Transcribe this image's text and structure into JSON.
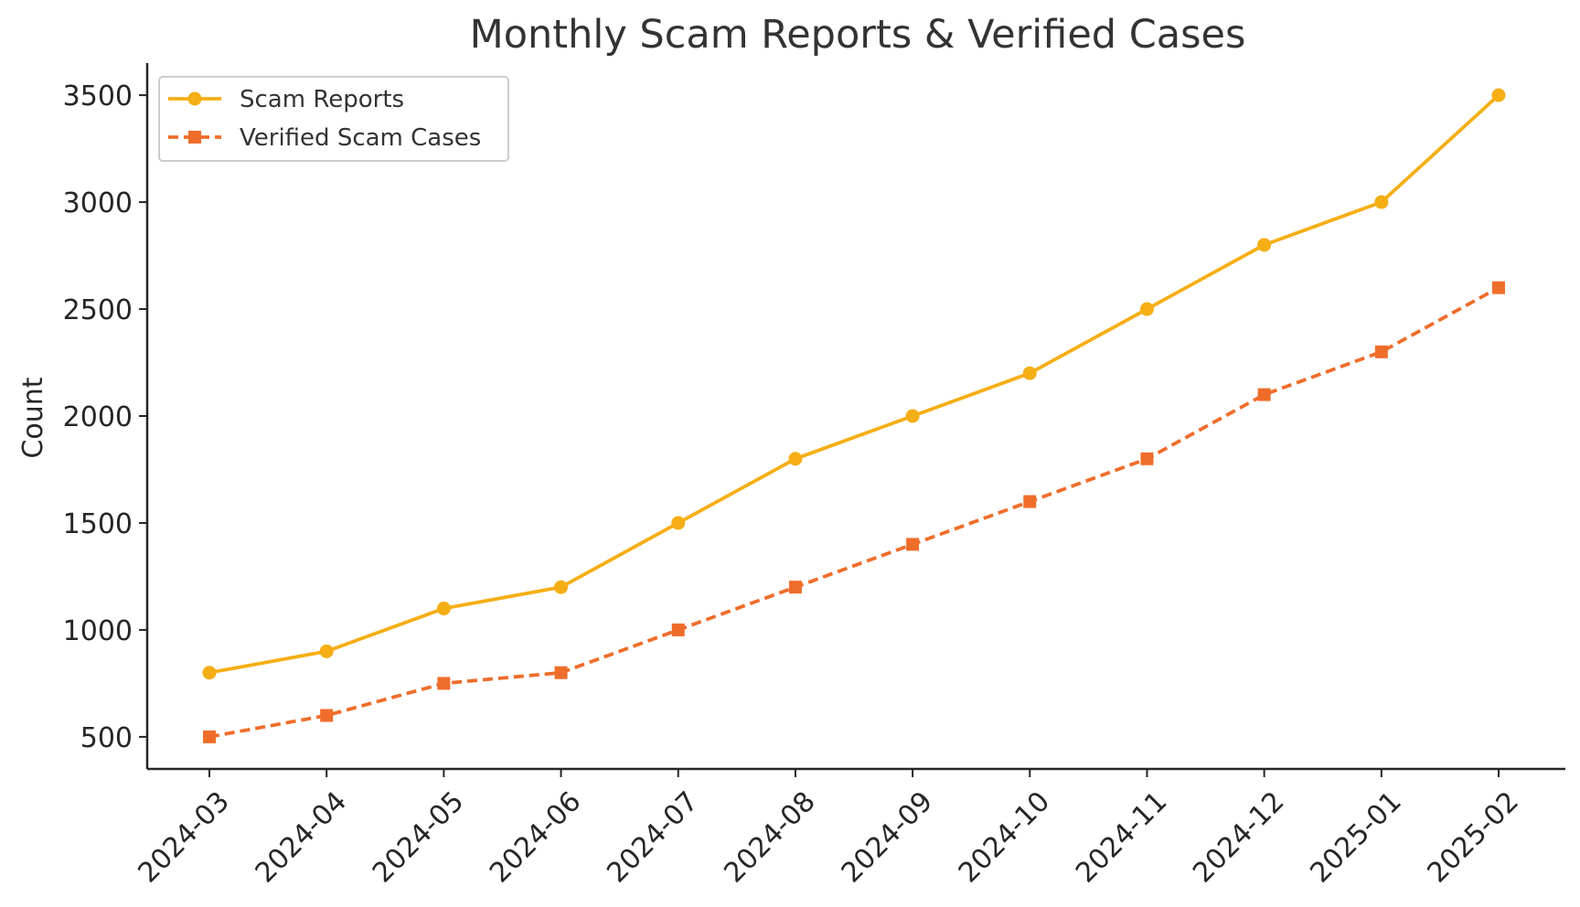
{
  "chart_data": {
    "type": "line",
    "title": "Monthly Scam Reports & Verified Cases",
    "xlabel": "",
    "ylabel": "Count",
    "categories": [
      "2024-03",
      "2024-04",
      "2024-05",
      "2024-06",
      "2024-07",
      "2024-08",
      "2024-09",
      "2024-10",
      "2024-11",
      "2024-12",
      "2025-01",
      "2025-02"
    ],
    "yticks": [
      500,
      1000,
      1500,
      2000,
      2500,
      3000,
      3500
    ],
    "ylim": [
      350,
      3650
    ],
    "grid": false,
    "legend_position": "top-left",
    "series": [
      {
        "name": "Scam Reports",
        "color": "#F5AE14",
        "line_style": "solid",
        "marker": "circle",
        "values": [
          800,
          900,
          1100,
          1200,
          1500,
          1800,
          2000,
          2200,
          2500,
          2800,
          3000,
          3500
        ]
      },
      {
        "name": "Verified Scam Cases",
        "color": "#EF6D2A",
        "line_style": "dashed",
        "marker": "square",
        "values": [
          500,
          600,
          750,
          800,
          1000,
          1200,
          1400,
          1600,
          1800,
          2100,
          2300,
          2600
        ]
      }
    ]
  }
}
